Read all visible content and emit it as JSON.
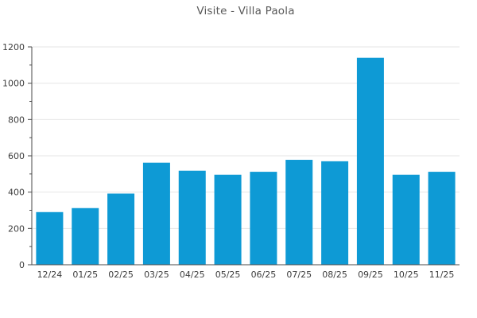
{
  "chart_data": {
    "type": "bar",
    "title": "Visite - Villa Paola",
    "categories": [
      "12/24",
      "01/25",
      "02/25",
      "03/25",
      "04/25",
      "05/25",
      "06/25",
      "07/25",
      "08/25",
      "09/25",
      "10/25",
      "11/25"
    ],
    "values": [
      290,
      312,
      392,
      562,
      518,
      496,
      512,
      578,
      570,
      1140,
      496,
      512
    ],
    "xlabel": "",
    "ylabel": "",
    "ylim": [
      0,
      1200
    ],
    "y_tick_step": 200,
    "y_minor_tick_step": 100,
    "y_tick_labels": [
      "0",
      "200",
      "400",
      "600",
      "800",
      "1000",
      "1200"
    ],
    "grid": "horizontal-major-only",
    "legend": "none",
    "colors": {
      "bar": "#0e9ad5",
      "grid": "#e6e6e6",
      "axis": "#4a4a4a",
      "tick_text": "#3d3d3d",
      "title_text": "#595959"
    }
  }
}
